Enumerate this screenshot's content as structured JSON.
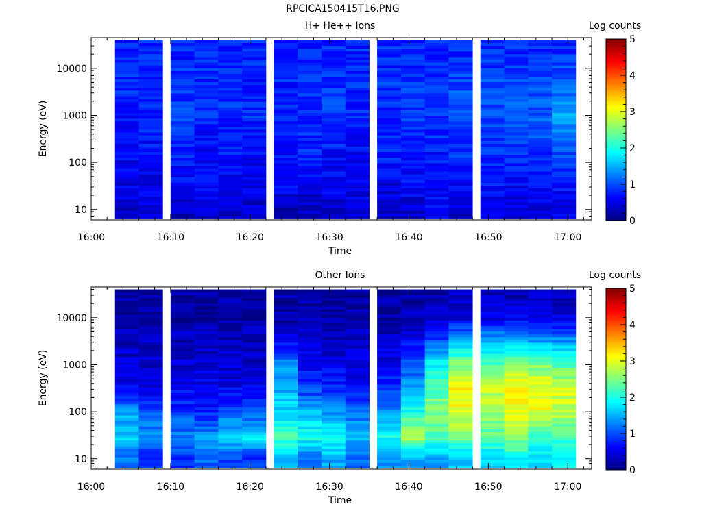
{
  "page": {
    "title": "RPCICA150415T16.PNG"
  },
  "chart_data": [
    {
      "type": "heatmap",
      "title": "H+ He++ Ions",
      "xlabel": "Time",
      "ylabel": "Energy (eV)",
      "x_ticks": [
        "16:00",
        "16:10",
        "16:20",
        "16:30",
        "16:40",
        "16:50",
        "17:00"
      ],
      "x_range": [
        "16:00",
        "17:03"
      ],
      "y_scale": "log",
      "y_ticks": [
        10,
        100,
        1000,
        10000
      ],
      "y_tick_labels": [
        "10",
        "100",
        "1000",
        "10000"
      ],
      "y_range": [
        6,
        45000
      ],
      "colorbar": {
        "label": "Log counts",
        "range": [
          0,
          5
        ],
        "ticks": [
          "0",
          "1",
          "2",
          "3",
          "4",
          "5"
        ]
      },
      "time_bins": [
        "16:03",
        "16:06",
        "16:10",
        "16:13",
        "16:16",
        "16:19",
        "16:23",
        "16:26",
        "16:29",
        "16:32",
        "16:36",
        "16:39",
        "16:42",
        "16:45",
        "16:49",
        "16:52",
        "16:55",
        "16:58"
      ],
      "energy_bands_eV": [
        "10",
        "30",
        "100",
        "300",
        "1000",
        "3000",
        "10000",
        "30000"
      ],
      "log_counts": [
        [
          0.4,
          0.5,
          0.3,
          0.4,
          0.4,
          0.4,
          0.3,
          0.4,
          0.4,
          0.5,
          0.4,
          0.4,
          0.6,
          0.4,
          0.5,
          0.4,
          0.4,
          0.5
        ],
        [
          0.5,
          0.5,
          0.6,
          0.6,
          0.5,
          0.5,
          0.6,
          0.5,
          0.6,
          0.5,
          0.5,
          0.6,
          0.6,
          0.6,
          0.7,
          0.6,
          0.7,
          0.7
        ],
        [
          0.6,
          0.6,
          0.7,
          0.6,
          0.7,
          0.6,
          0.6,
          0.7,
          0.6,
          0.6,
          0.7,
          0.7,
          0.7,
          0.8,
          0.8,
          0.8,
          0.8,
          0.9
        ],
        [
          0.7,
          0.7,
          0.8,
          0.7,
          0.8,
          0.7,
          0.7,
          0.8,
          0.8,
          0.7,
          0.8,
          0.8,
          0.8,
          0.9,
          0.9,
          1.0,
          1.0,
          1.1
        ],
        [
          0.7,
          0.8,
          0.9,
          0.8,
          0.8,
          0.8,
          0.8,
          0.8,
          0.9,
          0.8,
          0.8,
          0.9,
          0.9,
          1.0,
          1.0,
          1.1,
          1.1,
          1.4
        ],
        [
          0.8,
          0.8,
          0.9,
          0.8,
          0.9,
          0.8,
          0.8,
          0.9,
          0.9,
          0.8,
          0.9,
          0.9,
          0.9,
          1.0,
          1.0,
          1.0,
          1.0,
          1.2
        ],
        [
          0.8,
          0.8,
          0.8,
          0.8,
          0.8,
          0.8,
          0.8,
          0.8,
          0.8,
          0.8,
          0.8,
          0.8,
          0.8,
          0.9,
          0.9,
          0.9,
          0.9,
          1.0
        ],
        [
          0.8,
          0.8,
          0.8,
          0.8,
          0.8,
          0.8,
          0.8,
          0.8,
          0.8,
          0.8,
          0.8,
          0.8,
          0.8,
          0.8,
          0.8,
          0.8,
          0.8,
          0.8
        ]
      ]
    },
    {
      "type": "heatmap",
      "title": "Other Ions",
      "xlabel": "Time",
      "ylabel": "Energy (eV)",
      "x_ticks": [
        "16:00",
        "16:10",
        "16:20",
        "16:30",
        "16:40",
        "16:50",
        "17:00"
      ],
      "x_range": [
        "16:00",
        "17:03"
      ],
      "y_scale": "log",
      "y_ticks": [
        10,
        100,
        1000,
        10000
      ],
      "y_tick_labels": [
        "10",
        "100",
        "1000",
        "10000"
      ],
      "y_range": [
        6,
        45000
      ],
      "colorbar": {
        "label": "Log counts",
        "range": [
          0,
          5
        ],
        "ticks": [
          "0",
          "1",
          "2",
          "3",
          "4",
          "5"
        ]
      },
      "time_bins": [
        "16:03",
        "16:06",
        "16:10",
        "16:13",
        "16:16",
        "16:19",
        "16:23",
        "16:26",
        "16:29",
        "16:32",
        "16:36",
        "16:39",
        "16:42",
        "16:45",
        "16:49",
        "16:52",
        "16:55",
        "16:58"
      ],
      "energy_bands_eV": [
        "10",
        "30",
        "100",
        "300",
        "1000",
        "3000",
        "10000",
        "30000"
      ],
      "log_counts": [
        [
          1.2,
          0.8,
          0.9,
          1.1,
          0.9,
          0.9,
          1.6,
          1.1,
          1.5,
          1.2,
          1.3,
          1.4,
          1.5,
          1.6,
          1.7,
          1.9,
          1.7,
          1.9
        ],
        [
          1.6,
          1.3,
          1.3,
          1.4,
          1.7,
          1.8,
          2.2,
          2.0,
          1.9,
          1.6,
          2.0,
          2.7,
          2.2,
          2.4,
          2.3,
          2.6,
          2.2,
          2.2
        ],
        [
          1.4,
          1.1,
          0.9,
          0.8,
          1.0,
          1.0,
          1.7,
          1.5,
          1.3,
          1.1,
          1.3,
          2.0,
          2.5,
          3.0,
          2.7,
          3.1,
          3.0,
          2.8
        ],
        [
          0.6,
          0.5,
          0.6,
          0.6,
          0.6,
          0.6,
          1.5,
          0.9,
          0.8,
          0.7,
          0.9,
          1.3,
          2.3,
          3.2,
          2.8,
          3.2,
          3.1,
          2.9
        ],
        [
          0.4,
          0.4,
          0.4,
          0.4,
          0.4,
          0.4,
          1.3,
          0.6,
          0.5,
          0.5,
          0.6,
          1.1,
          1.9,
          2.5,
          2.3,
          2.6,
          2.5,
          2.3
        ],
        [
          0.3,
          0.3,
          0.3,
          0.3,
          0.3,
          0.3,
          0.7,
          0.4,
          0.3,
          0.3,
          0.4,
          0.6,
          1.0,
          1.6,
          1.5,
          1.6,
          1.5,
          1.4
        ],
        [
          0.2,
          0.2,
          0.2,
          0.2,
          0.2,
          0.2,
          0.2,
          0.2,
          0.2,
          0.2,
          0.2,
          0.3,
          0.3,
          0.5,
          0.5,
          0.6,
          0.5,
          0.5
        ],
        [
          0.2,
          0.2,
          0.2,
          0.2,
          0.2,
          0.2,
          0.2,
          0.2,
          0.2,
          0.2,
          0.2,
          0.2,
          0.2,
          0.3,
          0.3,
          0.3,
          0.3,
          0.3
        ]
      ]
    }
  ]
}
